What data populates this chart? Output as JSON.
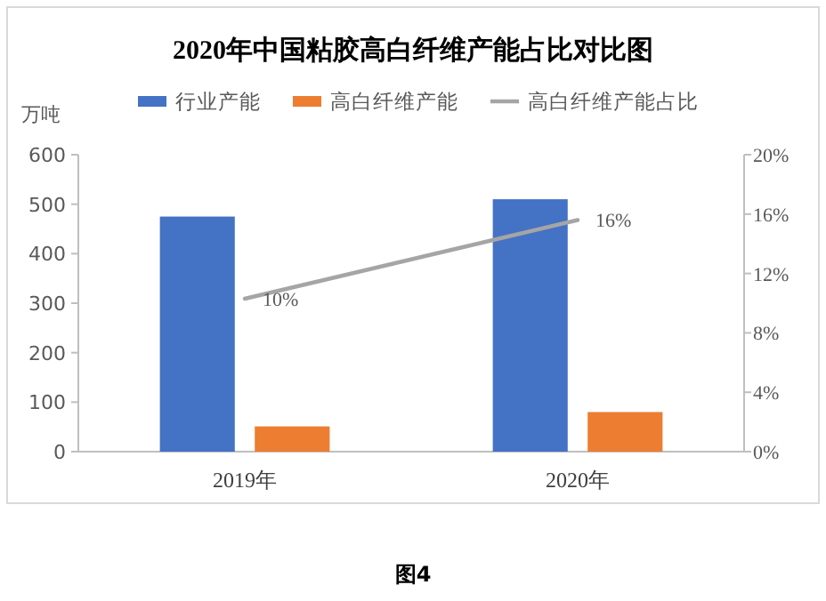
{
  "chart_data": {
    "type": "bar",
    "title": "2020年中国粘胶高白纤维产能占比对比图",
    "ylabel": "万吨",
    "categories": [
      "2019年",
      "2020年"
    ],
    "series": [
      {
        "name": "行业产能",
        "color": "#4472c4",
        "values": [
          475,
          510
        ]
      },
      {
        "name": "高白纤维产能",
        "color": "#ed7d31",
        "values": [
          51,
          80
        ]
      },
      {
        "name": "高白纤维产能占比",
        "type": "line",
        "axis": "y2",
        "color": "#a5a5a5",
        "values": [
          10.3,
          15.6
        ],
        "value_labels": [
          "10%",
          "16%"
        ]
      }
    ],
    "ylim": [
      0,
      600
    ],
    "yticks": [
      0,
      100,
      200,
      300,
      400,
      500,
      600
    ],
    "y2lim": [
      0,
      20
    ],
    "y2ticks": [
      {
        "value": 0,
        "label": "0%"
      },
      {
        "value": 4,
        "label": "4%"
      },
      {
        "value": 8,
        "label": "8%"
      },
      {
        "value": 12,
        "label": "12%"
      },
      {
        "value": 16,
        "label": "16%"
      },
      {
        "value": 20,
        "label": "20%"
      }
    ],
    "legend": "top",
    "grid": false,
    "annotations": [
      "图4"
    ]
  }
}
